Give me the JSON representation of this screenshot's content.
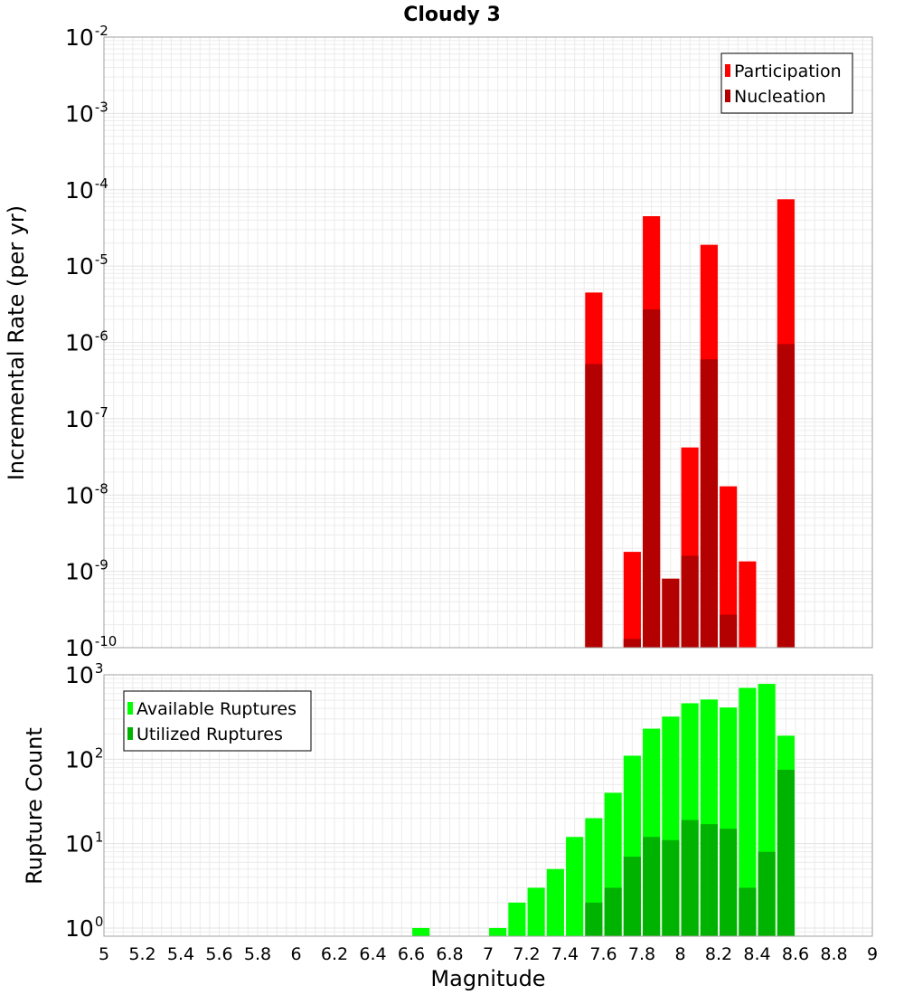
{
  "chart_data": [
    {
      "panel": "top",
      "type": "bar",
      "title": "Cloudy 3",
      "xlabel": "",
      "ylabel": "Incremental Rate (per yr)",
      "yscale": "log",
      "ylim": [
        1e-10,
        0.01
      ],
      "xlim": [
        5,
        9
      ],
      "grid": true,
      "legend_position": "top-right",
      "bar_width": 0.09,
      "y_ticks": [
        {
          "base": "10",
          "exp": "-2",
          "value": 0.01
        },
        {
          "base": "10",
          "exp": "-3",
          "value": 0.001
        },
        {
          "base": "10",
          "exp": "-4",
          "value": 0.0001
        },
        {
          "base": "10",
          "exp": "-5",
          "value": 1e-05
        },
        {
          "base": "10",
          "exp": "-6",
          "value": 1e-06
        },
        {
          "base": "10",
          "exp": "-7",
          "value": 1e-07
        },
        {
          "base": "10",
          "exp": "-8",
          "value": 1e-08
        },
        {
          "base": "10",
          "exp": "-9",
          "value": 1e-09
        },
        {
          "base": "10",
          "exp": "-10",
          "value": 1e-10
        }
      ],
      "series": [
        {
          "name": "Participation",
          "color": "#ff0000",
          "points": [
            {
              "x": 7.55,
              "y": 4.5e-06
            },
            {
              "x": 7.75,
              "y": 1.8e-09
            },
            {
              "x": 7.85,
              "y": 4.5e-05
            },
            {
              "x": 7.95,
              "y": 8e-10
            },
            {
              "x": 8.05,
              "y": 4.2e-08
            },
            {
              "x": 8.15,
              "y": 1.9e-05
            },
            {
              "x": 8.25,
              "y": 1.3e-08
            },
            {
              "x": 8.35,
              "y": 1.35e-09
            },
            {
              "x": 8.55,
              "y": 7.5e-05
            }
          ]
        },
        {
          "name": "Nucleation",
          "color": "#b30000",
          "points": [
            {
              "x": 7.55,
              "y": 5.2e-07
            },
            {
              "x": 7.75,
              "y": 1.3e-10
            },
            {
              "x": 7.85,
              "y": 2.7e-06
            },
            {
              "x": 7.95,
              "y": 8e-10
            },
            {
              "x": 8.05,
              "y": 1.6e-09
            },
            {
              "x": 8.15,
              "y": 6e-07
            },
            {
              "x": 8.25,
              "y": 2.7e-10
            },
            {
              "x": 8.55,
              "y": 9.5e-07
            }
          ]
        }
      ]
    },
    {
      "panel": "bottom",
      "type": "bar",
      "xlabel": "Magnitude",
      "ylabel": "Rupture Count",
      "yscale": "log",
      "ylim": [
        0.8,
        1000
      ],
      "xlim": [
        5,
        9
      ],
      "grid": true,
      "legend_position": "top-left",
      "bar_width": 0.09,
      "x_ticks": [
        "5",
        "5.2",
        "5.4",
        "5.6",
        "5.8",
        "6",
        "6.2",
        "6.4",
        "6.6",
        "6.8",
        "7",
        "7.2",
        "7.4",
        "7.6",
        "7.8",
        "8",
        "8.2",
        "8.4",
        "8.6",
        "8.8",
        "9"
      ],
      "y_ticks": [
        {
          "base": "10",
          "exp": "3",
          "value": 1000
        },
        {
          "base": "10",
          "exp": "2",
          "value": 100
        },
        {
          "base": "10",
          "exp": "1",
          "value": 10
        },
        {
          "base": "10",
          "exp": "0",
          "value": 1
        }
      ],
      "series": [
        {
          "name": "Available Ruptures",
          "color": "#00ff00",
          "points": [
            {
              "x": 6.65,
              "y": 1
            },
            {
              "x": 7.05,
              "y": 1
            },
            {
              "x": 7.15,
              "y": 2
            },
            {
              "x": 7.25,
              "y": 3
            },
            {
              "x": 7.35,
              "y": 5
            },
            {
              "x": 7.45,
              "y": 12
            },
            {
              "x": 7.55,
              "y": 20
            },
            {
              "x": 7.65,
              "y": 40
            },
            {
              "x": 7.75,
              "y": 110
            },
            {
              "x": 7.85,
              "y": 230
            },
            {
              "x": 7.95,
              "y": 320
            },
            {
              "x": 8.05,
              "y": 460
            },
            {
              "x": 8.15,
              "y": 510
            },
            {
              "x": 8.25,
              "y": 410
            },
            {
              "x": 8.35,
              "y": 700
            },
            {
              "x": 8.45,
              "y": 780
            },
            {
              "x": 8.55,
              "y": 190
            }
          ]
        },
        {
          "name": "Utilized Ruptures",
          "color": "#00b300",
          "points": [
            {
              "x": 7.55,
              "y": 2
            },
            {
              "x": 7.65,
              "y": 3
            },
            {
              "x": 7.75,
              "y": 7
            },
            {
              "x": 7.85,
              "y": 12
            },
            {
              "x": 7.95,
              "y": 11
            },
            {
              "x": 8.05,
              "y": 19
            },
            {
              "x": 8.15,
              "y": 17
            },
            {
              "x": 8.25,
              "y": 15
            },
            {
              "x": 8.35,
              "y": 3
            },
            {
              "x": 8.45,
              "y": 8
            },
            {
              "x": 8.55,
              "y": 75
            }
          ]
        }
      ]
    }
  ]
}
